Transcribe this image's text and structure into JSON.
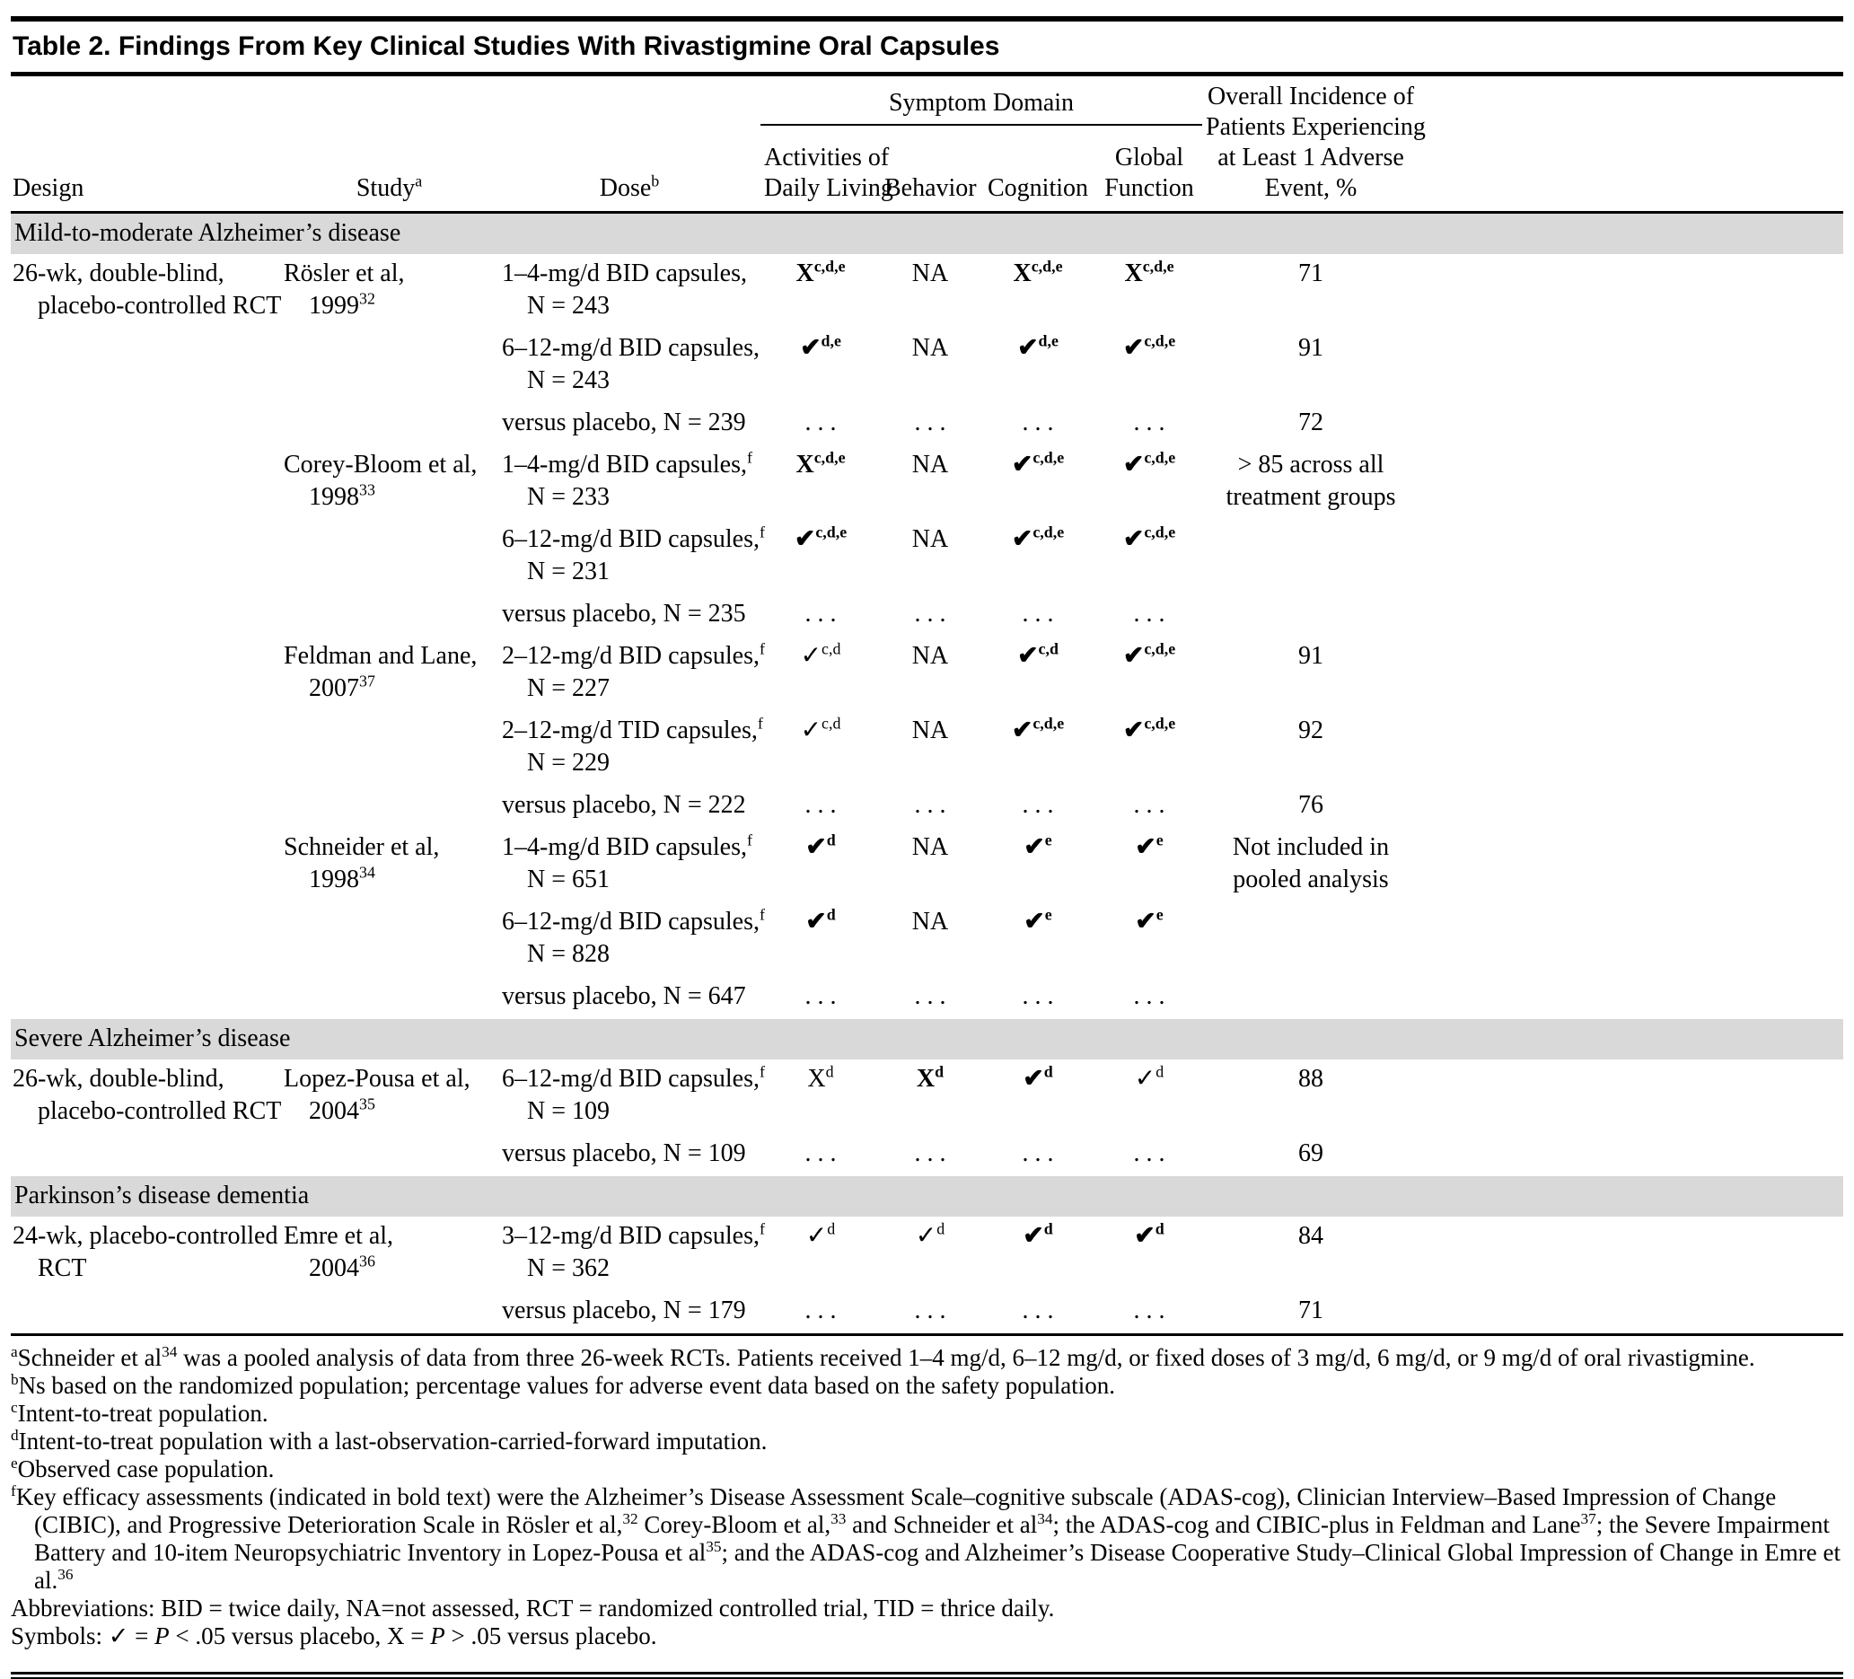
{
  "title": "Table 2. Findings From Key Clinical Studies With Rivastigmine Oral Capsules",
  "table": {
    "headers": {
      "design": "Design",
      "study": "Study",
      "study_sup": "a",
      "dose": "Dose",
      "dose_sup": "b",
      "symptom_domain": "Symptom Domain",
      "adl_lines": [
        "Activities of",
        "Daily Living"
      ],
      "behavior": "Behavior",
      "cognition": "Cognition",
      "global_lines": [
        "Global",
        "Function"
      ],
      "adverse_lines": [
        "Overall Incidence of",
        "Patients Experiencing",
        "at Least 1 Adverse",
        "Event, %"
      ]
    },
    "rows": [
      {
        "type": "section",
        "label": "Mild-to-moderate Alzheimer’s disease"
      },
      {
        "type": "data",
        "design": [
          "26-wk, double-blind,",
          "placebo-controlled RCT"
        ],
        "study": {
          "name": "Rösler et al,",
          "year": "1999",
          "ref": "32"
        },
        "dose": {
          "line1": "1–4-mg/d BID capsules,",
          "sup": "",
          "line2": "N = 243"
        },
        "cells": [
          {
            "sym": "X",
            "sup": "c,d,e",
            "bold": true
          },
          {
            "sym": "NA",
            "sup": "",
            "bold": false
          },
          {
            "sym": "X",
            "sup": "c,d,e",
            "bold": true
          },
          {
            "sym": "X",
            "sup": "c,d,e",
            "bold": true
          }
        ],
        "adverse": [
          "71"
        ]
      },
      {
        "type": "data",
        "dose": {
          "line1": "6–12-mg/d BID capsules,",
          "sup": "",
          "line2": "N = 243"
        },
        "cells": [
          {
            "sym": "✔",
            "sup": "d,e",
            "bold": true
          },
          {
            "sym": "NA",
            "sup": "",
            "bold": false
          },
          {
            "sym": "✔",
            "sup": "d,e",
            "bold": true
          },
          {
            "sym": "✔",
            "sup": "c,d,e",
            "bold": true
          }
        ],
        "adverse": [
          "91"
        ]
      },
      {
        "type": "data",
        "dose": {
          "line1": "versus placebo, N = 239",
          "sup": ""
        },
        "cells": [
          {
            "sym": ". . .",
            "sup": "",
            "bold": false
          },
          {
            "sym": ". . .",
            "sup": "",
            "bold": false
          },
          {
            "sym": ". . .",
            "sup": "",
            "bold": false
          },
          {
            "sym": ". . .",
            "sup": "",
            "bold": false
          }
        ],
        "adverse": [
          "72"
        ]
      },
      {
        "type": "data",
        "study": {
          "name": "Corey-Bloom et al,",
          "year": "1998",
          "ref": "33"
        },
        "dose": {
          "line1": "1–4-mg/d BID capsules,",
          "sup": "f",
          "line2": "N = 233"
        },
        "cells": [
          {
            "sym": "X",
            "sup": "c,d,e",
            "bold": true
          },
          {
            "sym": "NA",
            "sup": "",
            "bold": false
          },
          {
            "sym": "✔",
            "sup": "c,d,e",
            "bold": true
          },
          {
            "sym": "✔",
            "sup": "c,d,e",
            "bold": true
          }
        ],
        "adverse": [
          "> 85 across all",
          "treatment groups"
        ]
      },
      {
        "type": "data",
        "dose": {
          "line1": "6–12-mg/d BID capsules,",
          "sup": "f",
          "line2": "N = 231"
        },
        "cells": [
          {
            "sym": "✔",
            "sup": "c,d,e",
            "bold": true
          },
          {
            "sym": "NA",
            "sup": "",
            "bold": false
          },
          {
            "sym": "✔",
            "sup": "c,d,e",
            "bold": true
          },
          {
            "sym": "✔",
            "sup": "c,d,e",
            "bold": true
          }
        ],
        "adverse": []
      },
      {
        "type": "data",
        "dose": {
          "line1": "versus placebo, N = 235",
          "sup": ""
        },
        "cells": [
          {
            "sym": ". . .",
            "sup": "",
            "bold": false
          },
          {
            "sym": ". . .",
            "sup": "",
            "bold": false
          },
          {
            "sym": ". . .",
            "sup": "",
            "bold": false
          },
          {
            "sym": ". . .",
            "sup": "",
            "bold": false
          }
        ],
        "adverse": []
      },
      {
        "type": "data",
        "study": {
          "name": "Feldman and Lane,",
          "year": "2007",
          "ref": "37"
        },
        "dose": {
          "line1": "2–12-mg/d BID capsules,",
          "sup": "f",
          "line2": "N = 227"
        },
        "cells": [
          {
            "sym": "✓",
            "sup": "c,d",
            "bold": false
          },
          {
            "sym": "NA",
            "sup": "",
            "bold": false
          },
          {
            "sym": "✔",
            "sup": "c,d",
            "bold": true
          },
          {
            "sym": "✔",
            "sup": "c,d,e",
            "bold": true
          }
        ],
        "adverse": [
          "91"
        ]
      },
      {
        "type": "data",
        "dose": {
          "line1": "2–12-mg/d TID capsules,",
          "sup": "f",
          "line2": "N = 229"
        },
        "cells": [
          {
            "sym": "✓",
            "sup": "c,d",
            "bold": false
          },
          {
            "sym": "NA",
            "sup": "",
            "bold": false
          },
          {
            "sym": "✔",
            "sup": "c,d,e",
            "bold": true
          },
          {
            "sym": "✔",
            "sup": "c,d,e",
            "bold": true
          }
        ],
        "adverse": [
          "92"
        ]
      },
      {
        "type": "data",
        "dose": {
          "line1": "versus placebo, N = 222",
          "sup": ""
        },
        "cells": [
          {
            "sym": ". . .",
            "sup": "",
            "bold": false
          },
          {
            "sym": ". . .",
            "sup": "",
            "bold": false
          },
          {
            "sym": ". . .",
            "sup": "",
            "bold": false
          },
          {
            "sym": ". . .",
            "sup": "",
            "bold": false
          }
        ],
        "adverse": [
          "76"
        ]
      },
      {
        "type": "data",
        "study": {
          "name": "Schneider et al,",
          "year": "1998",
          "ref": "34"
        },
        "dose": {
          "line1": "1–4-mg/d BID capsules,",
          "sup": "f",
          "line2": "N = 651"
        },
        "cells": [
          {
            "sym": "✔",
            "sup": "d",
            "bold": true
          },
          {
            "sym": "NA",
            "sup": "",
            "bold": false
          },
          {
            "sym": "✔",
            "sup": "e",
            "bold": true
          },
          {
            "sym": "✔",
            "sup": "e",
            "bold": true
          }
        ],
        "adverse": [
          "Not included in",
          "pooled analysis"
        ]
      },
      {
        "type": "data",
        "dose": {
          "line1": "6–12-mg/d BID capsules,",
          "sup": "f",
          "line2": "N = 828"
        },
        "cells": [
          {
            "sym": "✔",
            "sup": "d",
            "bold": true
          },
          {
            "sym": "NA",
            "sup": "",
            "bold": false
          },
          {
            "sym": "✔",
            "sup": "e",
            "bold": true
          },
          {
            "sym": "✔",
            "sup": "e",
            "bold": true
          }
        ],
        "adverse": []
      },
      {
        "type": "data",
        "dose": {
          "line1": "versus placebo, N = 647",
          "sup": ""
        },
        "cells": [
          {
            "sym": ". . .",
            "sup": "",
            "bold": false
          },
          {
            "sym": ". . .",
            "sup": "",
            "bold": false
          },
          {
            "sym": ". . .",
            "sup": "",
            "bold": false
          },
          {
            "sym": ". . .",
            "sup": "",
            "bold": false
          }
        ],
        "adverse": []
      },
      {
        "type": "section",
        "label": "Severe Alzheimer’s disease"
      },
      {
        "type": "data",
        "design": [
          "26-wk, double-blind,",
          "placebo-controlled RCT"
        ],
        "study": {
          "name": "Lopez-Pousa et al,",
          "year": "2004",
          "ref": "35"
        },
        "dose": {
          "line1": "6–12-mg/d BID capsules,",
          "sup": "f",
          "line2": "N = 109"
        },
        "cells": [
          {
            "sym": "X",
            "sup": "d",
            "bold": false
          },
          {
            "sym": "X",
            "sup": "d",
            "bold": true
          },
          {
            "sym": "✔",
            "sup": "d",
            "bold": true
          },
          {
            "sym": "✓",
            "sup": "d",
            "bold": false
          }
        ],
        "adverse": [
          "88"
        ]
      },
      {
        "type": "data",
        "dose": {
          "line1": "versus placebo, N = 109",
          "sup": ""
        },
        "cells": [
          {
            "sym": ". . .",
            "sup": "",
            "bold": false
          },
          {
            "sym": ". . .",
            "sup": "",
            "bold": false
          },
          {
            "sym": ". . .",
            "sup": "",
            "bold": false
          },
          {
            "sym": ". . .",
            "sup": "",
            "bold": false
          }
        ],
        "adverse": [
          "69"
        ]
      },
      {
        "type": "section",
        "label": "Parkinson’s disease dementia"
      },
      {
        "type": "data",
        "design": [
          "24-wk, placebo-controlled",
          "RCT"
        ],
        "study": {
          "name": "Emre et al,",
          "year": "2004",
          "ref": "36"
        },
        "dose": {
          "line1": "3–12-mg/d BID capsules,",
          "sup": "f",
          "line2": "N = 362"
        },
        "cells": [
          {
            "sym": "✓",
            "sup": "d",
            "bold": false
          },
          {
            "sym": "✓",
            "sup": "d",
            "bold": false
          },
          {
            "sym": "✔",
            "sup": "d",
            "bold": true
          },
          {
            "sym": "✔",
            "sup": "d",
            "bold": true
          }
        ],
        "adverse": [
          "84"
        ]
      },
      {
        "type": "data",
        "dose": {
          "line1": "versus placebo, N = 179",
          "sup": ""
        },
        "cells": [
          {
            "sym": ". . .",
            "sup": "",
            "bold": false
          },
          {
            "sym": ". . .",
            "sup": "",
            "bold": false
          },
          {
            "sym": ". . .",
            "sup": "",
            "bold": false
          },
          {
            "sym": ". . .",
            "sup": "",
            "bold": false
          }
        ],
        "adverse": [
          "71"
        ]
      }
    ]
  },
  "footnotes": [
    {
      "marker": "a",
      "segments": [
        {
          "text": "Schneider et al"
        },
        {
          "sup": "34"
        },
        {
          "text": " was a pooled analysis of data from three 26-week RCTs. Patients received 1–4 mg/d, 6–12 mg/d, or fixed doses of 3 mg/d, 6 mg/d, or 9 mg/d of oral rivastigmine."
        }
      ]
    },
    {
      "marker": "b",
      "segments": [
        {
          "text": "Ns based on the randomized population; percentage values for adverse event data based on the safety population."
        }
      ]
    },
    {
      "marker": "c",
      "segments": [
        {
          "text": "Intent-to-treat population."
        }
      ]
    },
    {
      "marker": "d",
      "segments": [
        {
          "text": "Intent-to-treat population with a last-observation-carried-forward imputation."
        }
      ]
    },
    {
      "marker": "e",
      "segments": [
        {
          "text": "Observed case population."
        }
      ]
    },
    {
      "marker": "f",
      "segments": [
        {
          "text": "Key efficacy assessments (indicated in bold text) were the Alzheimer’s Disease Assessment Scale–cognitive subscale (ADAS-cog), Clinician Interview–Based Impression of Change (CIBIC), and Progressive Deterioration Scale in Rösler et al,"
        },
        {
          "sup": "32"
        },
        {
          "text": " Corey-Bloom et al,"
        },
        {
          "sup": "33"
        },
        {
          "text": " and Schneider et al"
        },
        {
          "sup": "34"
        },
        {
          "text": "; the ADAS-cog and CIBIC-plus in Feldman and Lane"
        },
        {
          "sup": "37"
        },
        {
          "text": "; the Severe Impairment Battery and 10-item Neuropsychiatric Inventory in Lopez-Pousa et al"
        },
        {
          "sup": "35"
        },
        {
          "text": "; and the ADAS-cog and Alzheimer’s Disease Cooperative Study–Clinical Global Impression of Change in Emre et al."
        },
        {
          "sup": "36"
        }
      ]
    },
    {
      "marker": "",
      "segments": [
        {
          "text": "Abbreviations: BID = twice daily, NA=not assessed, RCT = randomized controlled trial, TID = thrice daily."
        }
      ]
    },
    {
      "marker": "",
      "segments": [
        {
          "text": "Symbols: ✓ = "
        },
        {
          "italic": "P"
        },
        {
          "text": " < .05 versus placebo, X = "
        },
        {
          "italic": "P"
        },
        {
          "text": " > .05 versus placebo."
        }
      ]
    }
  ]
}
